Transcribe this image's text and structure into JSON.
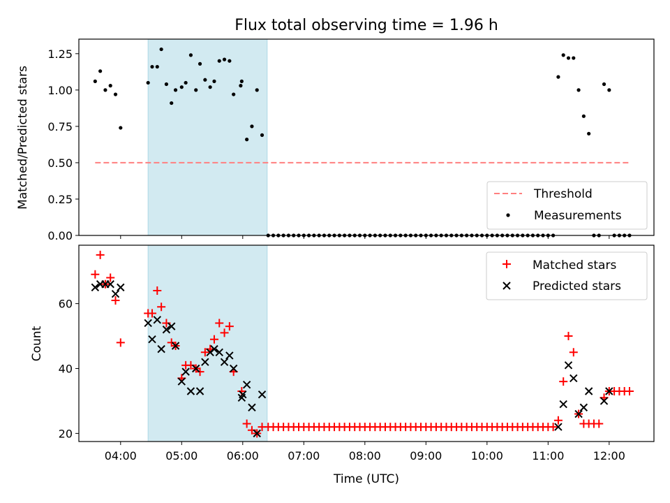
{
  "figure": {
    "title": "Flux total observing time = 1.96 h",
    "xlabel": "Time (UTC)",
    "xticks": [
      "04:00",
      "05:00",
      "06:00",
      "07:00",
      "08:00",
      "09:00",
      "10:00",
      "11:00",
      "12:00"
    ],
    "xlim": [
      "03:19",
      "12:44"
    ],
    "shaded_span": [
      "04:27",
      "06:24"
    ],
    "colors": {
      "shade": "#add8e6",
      "threshold": "#ff7f7f",
      "matched": "#ff0000",
      "predicted": "#000000",
      "measurements": "#000000"
    }
  },
  "chart_data": [
    {
      "type": "scatter",
      "ylabel": "Matched/Predicted stars",
      "ylim": [
        0,
        1.35
      ],
      "yticks": [
        "0.00",
        "0.25",
        "0.50",
        "0.75",
        "1.00",
        "1.25"
      ],
      "legend_position": "lower right",
      "threshold": {
        "name": "Threshold",
        "value": 0.5,
        "x_range": [
          "03:35",
          "12:20"
        ]
      },
      "series": [
        {
          "name": "Measurements",
          "points": [
            [
              "03:35",
              1.06
            ],
            [
              "03:40",
              1.13
            ],
            [
              "03:45",
              1.0
            ],
            [
              "03:50",
              1.03
            ],
            [
              "03:55",
              0.97
            ],
            [
              "04:00",
              0.74
            ],
            [
              "04:27",
              1.05
            ],
            [
              "04:31",
              1.16
            ],
            [
              "04:36",
              1.16
            ],
            [
              "04:40",
              1.28
            ],
            [
              "04:45",
              1.04
            ],
            [
              "04:50",
              0.91
            ],
            [
              "04:54",
              1.0
            ],
            [
              "05:00",
              1.02
            ],
            [
              "05:04",
              1.05
            ],
            [
              "05:09",
              1.24
            ],
            [
              "05:14",
              1.0
            ],
            [
              "05:18",
              1.18
            ],
            [
              "05:23",
              1.07
            ],
            [
              "05:28",
              1.02
            ],
            [
              "05:32",
              1.06
            ],
            [
              "05:37",
              1.2
            ],
            [
              "05:42",
              1.21
            ],
            [
              "05:47",
              1.2
            ],
            [
              "05:51",
              0.97
            ],
            [
              "05:58",
              1.03
            ],
            [
              "05:59",
              1.06
            ],
            [
              "06:04",
              0.66
            ],
            [
              "06:09",
              0.75
            ],
            [
              "06:14",
              1.0
            ],
            [
              "06:19",
              0.69
            ],
            [
              "06:25",
              0
            ],
            [
              "06:30",
              0
            ],
            [
              "06:35",
              0
            ],
            [
              "06:40",
              0
            ],
            [
              "06:45",
              0
            ],
            [
              "06:50",
              0
            ],
            [
              "06:55",
              0
            ],
            [
              "07:00",
              0
            ],
            [
              "07:05",
              0
            ],
            [
              "07:10",
              0
            ],
            [
              "07:15",
              0
            ],
            [
              "07:20",
              0
            ],
            [
              "07:25",
              0
            ],
            [
              "07:30",
              0
            ],
            [
              "07:35",
              0
            ],
            [
              "07:40",
              0
            ],
            [
              "07:45",
              0
            ],
            [
              "07:50",
              0
            ],
            [
              "07:55",
              0
            ],
            [
              "08:00",
              0
            ],
            [
              "08:05",
              0
            ],
            [
              "08:10",
              0
            ],
            [
              "08:15",
              0
            ],
            [
              "08:20",
              0
            ],
            [
              "08:25",
              0
            ],
            [
              "08:30",
              0
            ],
            [
              "08:35",
              0
            ],
            [
              "08:40",
              0
            ],
            [
              "08:45",
              0
            ],
            [
              "08:50",
              0
            ],
            [
              "08:55",
              0
            ],
            [
              "09:00",
              0
            ],
            [
              "09:05",
              0
            ],
            [
              "09:10",
              0
            ],
            [
              "09:15",
              0
            ],
            [
              "09:20",
              0
            ],
            [
              "09:25",
              0
            ],
            [
              "09:30",
              0
            ],
            [
              "09:35",
              0
            ],
            [
              "09:40",
              0
            ],
            [
              "09:45",
              0
            ],
            [
              "09:50",
              0
            ],
            [
              "09:55",
              0
            ],
            [
              "10:00",
              0
            ],
            [
              "10:05",
              0
            ],
            [
              "10:10",
              0
            ],
            [
              "10:15",
              0
            ],
            [
              "10:20",
              0
            ],
            [
              "10:25",
              0
            ],
            [
              "10:30",
              0
            ],
            [
              "10:35",
              0
            ],
            [
              "10:40",
              0
            ],
            [
              "10:45",
              0
            ],
            [
              "10:50",
              0
            ],
            [
              "10:55",
              0
            ],
            [
              "11:00",
              0
            ],
            [
              "11:05",
              0
            ],
            [
              "11:10",
              1.09
            ],
            [
              "11:15",
              1.24
            ],
            [
              "11:20",
              1.22
            ],
            [
              "11:25",
              1.22
            ],
            [
              "11:30",
              1.0
            ],
            [
              "11:35",
              0.82
            ],
            [
              "11:40",
              0.7
            ],
            [
              "11:45",
              0
            ],
            [
              "11:50",
              0
            ],
            [
              "11:55",
              1.04
            ],
            [
              "12:00",
              1.0
            ],
            [
              "12:05",
              0
            ],
            [
              "12:10",
              0
            ],
            [
              "12:15",
              0
            ],
            [
              "12:20",
              0
            ]
          ]
        }
      ]
    },
    {
      "type": "scatter",
      "ylabel": "Count",
      "ylim": [
        17.5,
        78
      ],
      "yticks": [
        "20",
        "40",
        "60"
      ],
      "legend_position": "upper right",
      "series": [
        {
          "name": "Matched stars",
          "marker": "+",
          "points": [
            [
              "03:35",
              69
            ],
            [
              "03:40",
              75
            ],
            [
              "03:45",
              66
            ],
            [
              "03:50",
              68
            ],
            [
              "03:55",
              61
            ],
            [
              "04:00",
              48
            ],
            [
              "04:27",
              57
            ],
            [
              "04:31",
              57
            ],
            [
              "04:36",
              64
            ],
            [
              "04:40",
              59
            ],
            [
              "04:45",
              54
            ],
            [
              "04:50",
              48
            ],
            [
              "04:54",
              47
            ],
            [
              "05:00",
              37
            ],
            [
              "05:04",
              41
            ],
            [
              "05:09",
              41
            ],
            [
              "05:14",
              40
            ],
            [
              "05:18",
              39
            ],
            [
              "05:23",
              45
            ],
            [
              "05:28",
              46
            ],
            [
              "05:32",
              49
            ],
            [
              "05:37",
              54
            ],
            [
              "05:42",
              51
            ],
            [
              "05:47",
              53
            ],
            [
              "05:51",
              39
            ],
            [
              "05:59",
              33
            ],
            [
              "06:04",
              23
            ],
            [
              "06:09",
              21
            ],
            [
              "06:14",
              20
            ],
            [
              "06:19",
              22
            ],
            [
              "06:25",
              22
            ],
            [
              "06:30",
              22
            ],
            [
              "06:35",
              22
            ],
            [
              "06:40",
              22
            ],
            [
              "06:45",
              22
            ],
            [
              "06:50",
              22
            ],
            [
              "06:55",
              22
            ],
            [
              "07:00",
              22
            ],
            [
              "07:05",
              22
            ],
            [
              "07:10",
              22
            ],
            [
              "07:15",
              22
            ],
            [
              "07:20",
              22
            ],
            [
              "07:25",
              22
            ],
            [
              "07:30",
              22
            ],
            [
              "07:35",
              22
            ],
            [
              "07:40",
              22
            ],
            [
              "07:45",
              22
            ],
            [
              "07:50",
              22
            ],
            [
              "07:55",
              22
            ],
            [
              "08:00",
              22
            ],
            [
              "08:05",
              22
            ],
            [
              "08:10",
              22
            ],
            [
              "08:15",
              22
            ],
            [
              "08:20",
              22
            ],
            [
              "08:25",
              22
            ],
            [
              "08:30",
              22
            ],
            [
              "08:35",
              22
            ],
            [
              "08:40",
              22
            ],
            [
              "08:45",
              22
            ],
            [
              "08:50",
              22
            ],
            [
              "08:55",
              22
            ],
            [
              "09:00",
              22
            ],
            [
              "09:05",
              22
            ],
            [
              "09:10",
              22
            ],
            [
              "09:15",
              22
            ],
            [
              "09:20",
              22
            ],
            [
              "09:25",
              22
            ],
            [
              "09:30",
              22
            ],
            [
              "09:35",
              22
            ],
            [
              "09:40",
              22
            ],
            [
              "09:45",
              22
            ],
            [
              "09:50",
              22
            ],
            [
              "09:55",
              22
            ],
            [
              "10:00",
              22
            ],
            [
              "10:05",
              22
            ],
            [
              "10:10",
              22
            ],
            [
              "10:15",
              22
            ],
            [
              "10:20",
              22
            ],
            [
              "10:25",
              22
            ],
            [
              "10:30",
              22
            ],
            [
              "10:35",
              22
            ],
            [
              "10:40",
              22
            ],
            [
              "10:45",
              22
            ],
            [
              "10:50",
              22
            ],
            [
              "10:55",
              22
            ],
            [
              "11:00",
              22
            ],
            [
              "11:05",
              22
            ],
            [
              "11:10",
              24
            ],
            [
              "11:15",
              36
            ],
            [
              "11:20",
              50
            ],
            [
              "11:25",
              45
            ],
            [
              "11:30",
              26
            ],
            [
              "11:35",
              23
            ],
            [
              "11:40",
              23
            ],
            [
              "11:45",
              23
            ],
            [
              "11:50",
              23
            ],
            [
              "11:55",
              31
            ],
            [
              "12:00",
              33
            ],
            [
              "12:05",
              33
            ],
            [
              "12:10",
              33
            ],
            [
              "12:15",
              33
            ],
            [
              "12:20",
              33
            ]
          ]
        },
        {
          "name": "Predicted stars",
          "marker": "x",
          "points": [
            [
              "03:35",
              65
            ],
            [
              "03:40",
              66
            ],
            [
              "03:45",
              66
            ],
            [
              "03:50",
              66
            ],
            [
              "03:55",
              63
            ],
            [
              "04:00",
              65
            ],
            [
              "04:27",
              54
            ],
            [
              "04:31",
              49
            ],
            [
              "04:36",
              55
            ],
            [
              "04:40",
              46
            ],
            [
              "04:45",
              52
            ],
            [
              "04:50",
              53
            ],
            [
              "04:54",
              47
            ],
            [
              "05:00",
              36
            ],
            [
              "05:04",
              39
            ],
            [
              "05:09",
              33
            ],
            [
              "05:14",
              40
            ],
            [
              "05:18",
              33
            ],
            [
              "05:23",
              42
            ],
            [
              "05:28",
              45
            ],
            [
              "05:32",
              46
            ],
            [
              "05:37",
              45
            ],
            [
              "05:42",
              42
            ],
            [
              "05:47",
              44
            ],
            [
              "05:51",
              40
            ],
            [
              "05:59",
              31
            ],
            [
              "06:00",
              32
            ],
            [
              "06:04",
              35
            ],
            [
              "06:09",
              28
            ],
            [
              "06:14",
              20
            ],
            [
              "06:19",
              32
            ],
            [
              "11:10",
              22
            ],
            [
              "11:15",
              29
            ],
            [
              "11:20",
              41
            ],
            [
              "11:25",
              37
            ],
            [
              "11:30",
              26
            ],
            [
              "11:35",
              28
            ],
            [
              "11:40",
              33
            ],
            [
              "11:55",
              30
            ],
            [
              "12:00",
              33
            ]
          ]
        }
      ]
    }
  ]
}
